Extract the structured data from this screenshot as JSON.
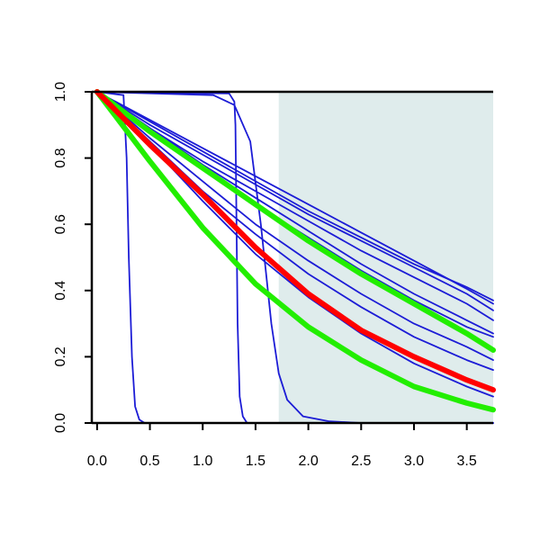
{
  "chart_data": {
    "type": "line",
    "title": "",
    "xlabel": "",
    "ylabel": "",
    "xlim": [
      -0.05,
      3.75
    ],
    "ylim": [
      0,
      1
    ],
    "x_ticks": [
      0.0,
      0.5,
      1.0,
      1.5,
      2.0,
      2.5,
      3.0,
      3.5
    ],
    "x_tick_labels": [
      "0.0",
      "0.5",
      "1.0",
      "1.5",
      "2.0",
      "2.5",
      "3.0",
      "3.5"
    ],
    "y_ticks": [
      0.0,
      0.2,
      0.4,
      0.6,
      0.8,
      1.0
    ],
    "y_tick_labels": [
      "0.0",
      "0.2",
      "0.4",
      "0.6",
      "0.8",
      "1.0"
    ],
    "grid": false,
    "legend": "none",
    "shaded_region": {
      "x_from": 1.72,
      "x_to": 3.75,
      "color": "#dfecec"
    },
    "colors": {
      "blue": "#1c1cd6",
      "red": "#ff0000",
      "green": "#22ee00",
      "axis": "#000000"
    },
    "series": [
      {
        "color": "blue",
        "width": "thin",
        "x": [
          0,
          0.25,
          0.28,
          0.3,
          0.33,
          0.36,
          0.4,
          0.45,
          3.75
        ],
        "y": [
          1,
          0.99,
          0.8,
          0.5,
          0.2,
          0.05,
          0.01,
          0,
          0
        ]
      },
      {
        "color": "blue",
        "width": "thin",
        "x": [
          0,
          1.25,
          1.3,
          1.31,
          1.32,
          1.33,
          1.35,
          1.38,
          1.42,
          3.75
        ],
        "y": [
          1,
          0.995,
          0.97,
          0.9,
          0.6,
          0.3,
          0.08,
          0.02,
          0,
          0
        ]
      },
      {
        "color": "blue",
        "width": "thin",
        "x": [
          0,
          1.1,
          1.3,
          1.45,
          1.55,
          1.6,
          1.65,
          1.72,
          1.8,
          1.95,
          2.2,
          2.5,
          3.75
        ],
        "y": [
          1,
          0.99,
          0.96,
          0.85,
          0.6,
          0.45,
          0.3,
          0.15,
          0.07,
          0.02,
          0.005,
          0,
          0
        ]
      },
      {
        "color": "blue",
        "width": "thin",
        "x": [
          0,
          0.5,
          1.0,
          1.5,
          2.0,
          2.5,
          3.0,
          3.5,
          3.75
        ],
        "y": [
          1,
          0.915,
          0.83,
          0.745,
          0.66,
          0.575,
          0.49,
          0.405,
          0.36
        ]
      },
      {
        "color": "blue",
        "width": "thin",
        "x": [
          0,
          0.5,
          1.0,
          1.5,
          2.0,
          2.5,
          3.0,
          3.5,
          3.75
        ],
        "y": [
          1,
          0.91,
          0.82,
          0.73,
          0.64,
          0.56,
          0.48,
          0.41,
          0.37
        ]
      },
      {
        "color": "blue",
        "width": "thin",
        "x": [
          0,
          0.5,
          1.0,
          1.5,
          2.0,
          2.5,
          3.0,
          3.5,
          3.75
        ],
        "y": [
          1,
          0.9,
          0.81,
          0.72,
          0.63,
          0.55,
          0.47,
          0.39,
          0.34
        ]
      },
      {
        "color": "blue",
        "width": "thin",
        "x": [
          0,
          0.5,
          1.0,
          1.5,
          2.0,
          2.5,
          3.0,
          3.5,
          3.75
        ],
        "y": [
          1,
          0.89,
          0.79,
          0.7,
          0.61,
          0.52,
          0.44,
          0.36,
          0.31
        ]
      },
      {
        "color": "blue",
        "width": "thin",
        "x": [
          0,
          0.5,
          1.0,
          1.5,
          2.0,
          2.5,
          3.0,
          3.5,
          3.75
        ],
        "y": [
          1,
          0.89,
          0.78,
          0.68,
          0.58,
          0.48,
          0.39,
          0.31,
          0.27
        ]
      },
      {
        "color": "blue",
        "width": "thin",
        "x": [
          0,
          0.5,
          1.0,
          1.5,
          2.0,
          2.5,
          3.0,
          3.5,
          3.75
        ],
        "y": [
          1,
          0.88,
          0.77,
          0.66,
          0.56,
          0.46,
          0.37,
          0.29,
          0.26
        ]
      },
      {
        "color": "blue",
        "width": "thin",
        "x": [
          0,
          0.5,
          1.0,
          1.5,
          2.0,
          2.5,
          3.0,
          3.5,
          3.75
        ],
        "y": [
          1,
          0.86,
          0.73,
          0.6,
          0.49,
          0.39,
          0.3,
          0.23,
          0.19
        ]
      },
      {
        "color": "blue",
        "width": "thin",
        "x": [
          0,
          0.5,
          1.0,
          1.5,
          2.0,
          2.5,
          3.0,
          3.5,
          3.75
        ],
        "y": [
          1,
          0.85,
          0.7,
          0.57,
          0.45,
          0.35,
          0.26,
          0.19,
          0.16
        ]
      },
      {
        "color": "blue",
        "width": "thin",
        "x": [
          0,
          0.5,
          1.0,
          1.5,
          2.0,
          2.5,
          3.0,
          3.5,
          3.75
        ],
        "y": [
          1,
          0.84,
          0.67,
          0.51,
          0.38,
          0.27,
          0.18,
          0.11,
          0.08
        ]
      },
      {
        "color": "green",
        "width": "thick",
        "x": [
          0,
          0.5,
          1.0,
          1.5,
          2.0,
          2.5,
          3.0,
          3.5,
          3.75
        ],
        "y": [
          1,
          0.88,
          0.77,
          0.66,
          0.55,
          0.45,
          0.36,
          0.27,
          0.22
        ]
      },
      {
        "color": "green",
        "width": "thick",
        "x": [
          0,
          0.5,
          1.0,
          1.5,
          2.0,
          2.5,
          3.0,
          3.5,
          3.75
        ],
        "y": [
          1,
          0.79,
          0.59,
          0.42,
          0.29,
          0.19,
          0.11,
          0.06,
          0.04
        ]
      },
      {
        "color": "red",
        "width": "thick",
        "x": [
          0,
          0.5,
          1.0,
          1.5,
          2.0,
          2.5,
          3.0,
          3.5,
          3.75
        ],
        "y": [
          1,
          0.84,
          0.69,
          0.53,
          0.39,
          0.28,
          0.2,
          0.13,
          0.1
        ]
      }
    ]
  }
}
